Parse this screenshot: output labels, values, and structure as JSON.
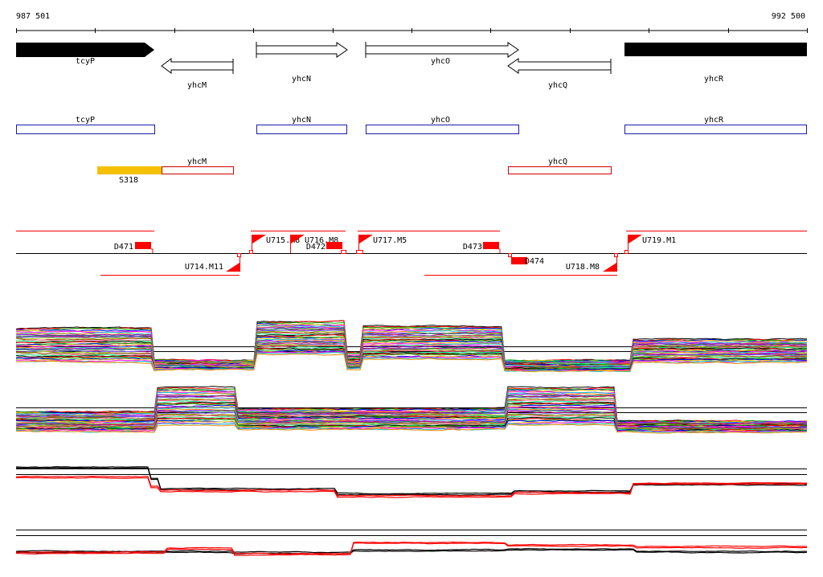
{
  "ruler": {
    "start_label": "987 501",
    "end_label": "992 500"
  },
  "genes": [
    {
      "id": "tcyP",
      "label": "tcyP",
      "strand": "+",
      "filled": true
    },
    {
      "id": "yhcM",
      "label": "yhcM",
      "strand": "-",
      "filled": false
    },
    {
      "id": "yhcN",
      "label": "yhcN",
      "strand": "+",
      "filled": false
    },
    {
      "id": "yhcO",
      "label": "yhcO",
      "strand": "+",
      "filled": false
    },
    {
      "id": "yhcQ",
      "label": "yhcQ",
      "strand": "-",
      "filled": false
    },
    {
      "id": "yhcR",
      "label": "yhcR",
      "strand": "+",
      "filled": true
    }
  ],
  "forward_boxes": [
    {
      "id": "tcyP",
      "label": "tcyP"
    },
    {
      "id": "yhcN",
      "label": "yhcN"
    },
    {
      "id": "yhcO",
      "label": "yhcO"
    },
    {
      "id": "yhcR",
      "label": "yhcR"
    }
  ],
  "reverse_boxes": [
    {
      "id": "yhcM",
      "label": "yhcM"
    },
    {
      "id": "yhcQ",
      "label": "yhcQ"
    }
  ],
  "feature": {
    "id": "S318",
    "label": "S318",
    "color": "#f5c000"
  },
  "upstream_markers": [
    {
      "id": "U715",
      "label": "U715.M8"
    },
    {
      "id": "U716",
      "label": "U716.M8"
    },
    {
      "id": "U717",
      "label": "U717.M5"
    },
    {
      "id": "U719",
      "label": "U719.M1"
    },
    {
      "id": "U714",
      "label": "U714.M11"
    },
    {
      "id": "U718",
      "label": "U718.M8"
    }
  ],
  "downstream_markers": [
    {
      "id": "D471",
      "label": "D471"
    },
    {
      "id": "D472",
      "label": "D472"
    },
    {
      "id": "D473",
      "label": "D473"
    },
    {
      "id": "D474",
      "label": "D474"
    }
  ],
  "colors": {
    "gene_fill": "#000000",
    "forward_box": "#1a1ab0",
    "reverse_box": "#cc0000",
    "marker_red": "#ff0000",
    "trace_palette": [
      "#000000",
      "#ff0000",
      "#00aa00",
      "#0000ff",
      "#ffcc00",
      "#ff00ff",
      "#00cccc",
      "#ff8800",
      "#8800ff",
      "#008844",
      "#cc0066",
      "#6666ff",
      "#99cc00",
      "#884400",
      "#ff6699",
      "#00ff88"
    ]
  }
}
